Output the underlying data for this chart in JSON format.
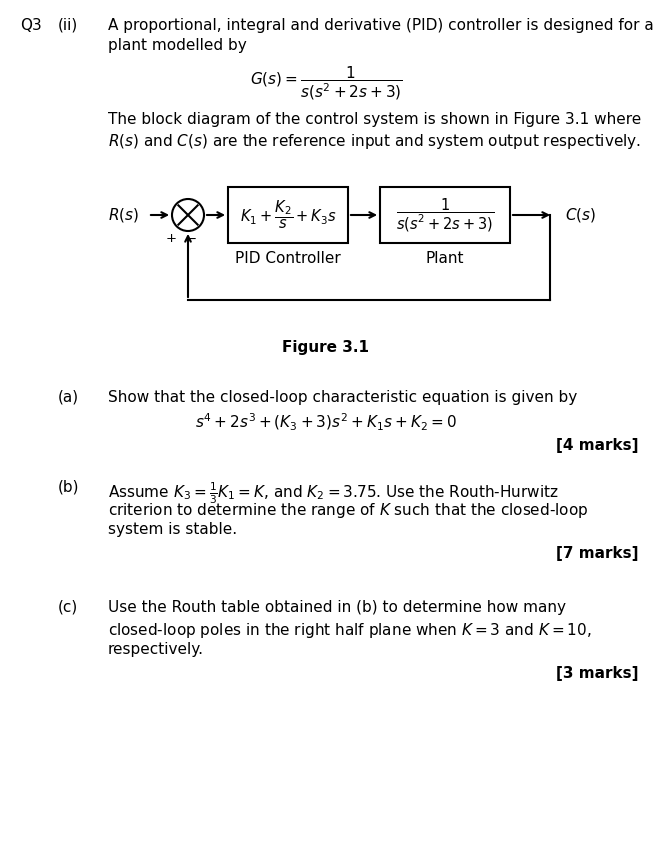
{
  "bg_color": "#ffffff",
  "text_color": "#000000",
  "q3_label": "Q3",
  "ii_label": "(ii)",
  "intro_line1": "A proportional, integral and derivative (PID) controller is designed for a",
  "intro_line2": "plant modelled by",
  "block_desc_line1": "The block diagram of the control system is shown in Figure 3.1 where",
  "block_desc_line2": "$R(s)$ and $C(s)$ are the reference input and system output respectively.",
  "figure_label": "Figure 3.1",
  "part_a_label": "(a)",
  "part_a_text": "Show that the closed-loop characteristic equation is given by",
  "part_a_marks": "[4 marks]",
  "part_b_label": "(b)",
  "part_b_marks": "[7 marks]",
  "part_c_label": "(c)",
  "part_c_line1": "Use the Routh table obtained in (b) to determine how many",
  "part_c_line2": "closed-loop poles in the right half plane when $K=3$ and $K=10$,",
  "part_c_line3": "respectively.",
  "part_c_marks": "[3 marks]",
  "fs": 11.0,
  "fs_small": 10.0,
  "lw": 1.5
}
